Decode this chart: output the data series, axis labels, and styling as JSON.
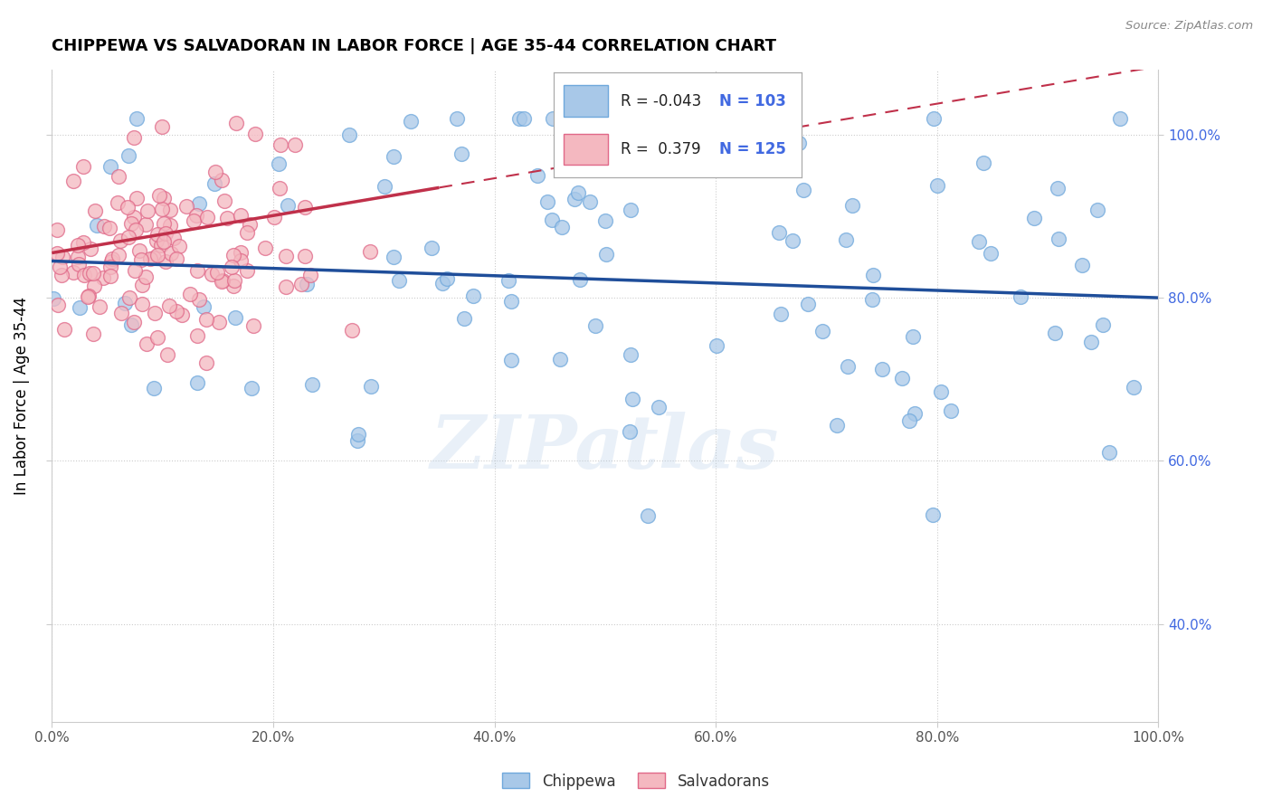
{
  "title": "CHIPPEWA VS SALVADORAN IN LABOR FORCE | AGE 35-44 CORRELATION CHART",
  "source": "Source: ZipAtlas.com",
  "ylabel": "In Labor Force | Age 35-44",
  "legend_labels": [
    "Chippewa",
    "Salvadorans"
  ],
  "chippewa_R": -0.043,
  "chippewa_N": 103,
  "salvadoran_R": 0.379,
  "salvadoran_N": 125,
  "chippewa_color": "#a8c8e8",
  "salvadoran_color": "#f4b8c0",
  "chippewa_edge": "#6fa8dc",
  "salvadoran_edge": "#e06888",
  "chippewa_line_color": "#1f4e9a",
  "salvadoran_line_color": "#c0304a",
  "background_color": "#ffffff",
  "grid_color": "#cccccc",
  "watermark": "ZIPatlas",
  "xlim": [
    0.0,
    1.0
  ],
  "ylim": [
    0.28,
    1.08
  ],
  "x_ticks": [
    0.0,
    0.2,
    0.4,
    0.6,
    0.8,
    1.0
  ],
  "x_tick_labels": [
    "0.0%",
    "20.0%",
    "40.0%",
    "60.0%",
    "80.0%",
    "100.0%"
  ],
  "y_ticks": [
    0.4,
    0.6,
    0.8,
    1.0
  ],
  "y_tick_labels": [
    "40.0%",
    "60.0%",
    "80.0%",
    "100.0%"
  ],
  "title_color": "#000000",
  "axis_label_color": "#000000",
  "tick_label_color": "#4169e1",
  "r_label_color": "#4169e1",
  "legend_R_chip": "R = -0.043",
  "legend_N_chip": "N = 103",
  "legend_R_salv": "R =  0.379",
  "legend_N_salv": "N = 125"
}
